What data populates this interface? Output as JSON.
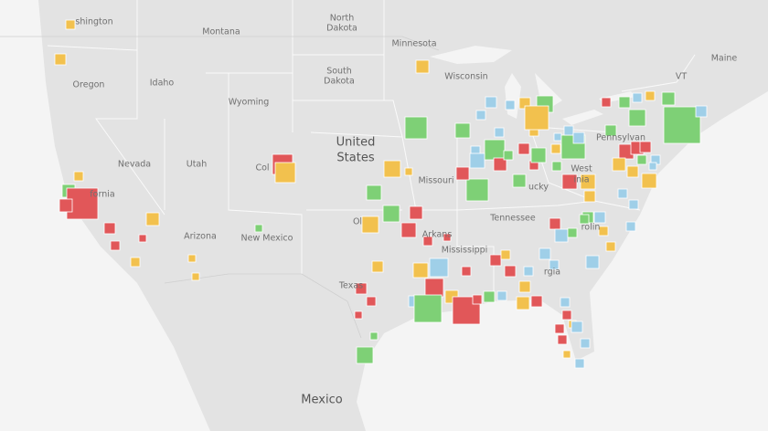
{
  "map": {
    "labels": [
      "shington",
      "Montana",
      "North",
      "Dakota",
      "Minnesota",
      "South",
      "Dakota",
      "Wisconsin",
      "Oregon",
      "Idaho",
      "Wyoming",
      "Maine",
      "VT",
      "United",
      "States",
      "Nevada",
      "Utah",
      "Col",
      "Missouri",
      "fornia",
      "Tennessee",
      "Pennsylvan",
      "West",
      "inia",
      "ucky",
      "New Mexico",
      "Arizona",
      "Ol",
      "Arkans",
      "Mississippi",
      "Texas",
      "rgia",
      "rolin",
      "Mexico"
    ]
  }
}
